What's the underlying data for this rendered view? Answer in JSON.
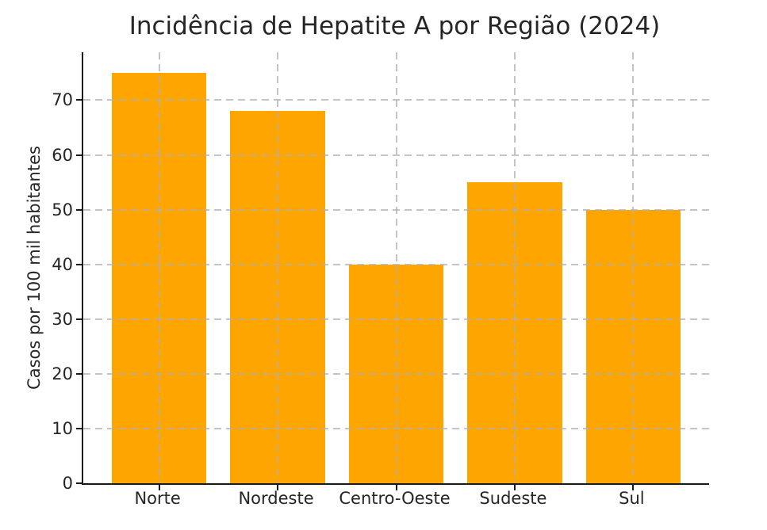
{
  "chart_data": {
    "type": "bar",
    "title": "Incidência de Hepatite A por Região (2024)",
    "xlabel": "",
    "ylabel": "Casos por 100 mil habitantes",
    "categories": [
      "Norte",
      "Nordeste",
      "Centro-Oeste",
      "Sudeste",
      "Sul"
    ],
    "values": [
      75,
      68,
      40,
      55,
      50
    ],
    "yticks": [
      0,
      10,
      20,
      30,
      40,
      50,
      60,
      70
    ],
    "ylim": [
      0,
      78.75
    ],
    "bar_color": "#FFA500",
    "grid": true,
    "grid_style": "dashed",
    "grid_color": "#b0b0b0",
    "grid_alpha": 0.7,
    "grid_position": "above-bars",
    "legend": "none",
    "spines": [
      "left",
      "bottom"
    ],
    "spine_color": "#1a1a1a",
    "text_color": "#262626",
    "background_color": "#ffffff"
  }
}
